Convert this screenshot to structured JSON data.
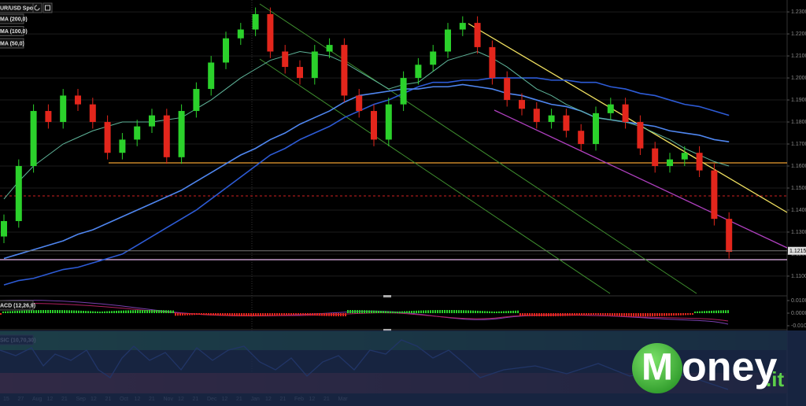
{
  "chart_data": {
    "type": "candlestick",
    "title": "UR/USD Spot",
    "ylim": [
      1.1014,
      1.2354
    ],
    "yticks": [
      {
        "value": 1.23,
        "label": "1.2300"
      },
      {
        "value": 1.22,
        "label": "1.2200"
      },
      {
        "value": 1.21,
        "label": "1.2100"
      },
      {
        "value": 1.2,
        "label": "1.2000"
      },
      {
        "value": 1.19,
        "label": "1.1900"
      },
      {
        "value": 1.18,
        "label": "1.1800"
      },
      {
        "value": 1.17,
        "label": "1.1700"
      },
      {
        "value": 1.16,
        "label": "1.1600"
      },
      {
        "value": 1.15,
        "label": "1.1500"
      },
      {
        "value": 1.14,
        "label": "1.1400"
      },
      {
        "value": 1.13,
        "label": "1.1300"
      },
      {
        "value": 1.12,
        "label": "1.1200"
      },
      {
        "value": 1.11,
        "label": "1.1100"
      }
    ],
    "grid": true,
    "up_color": "#2bd12b",
    "down_color": "#e3261c",
    "open": [
      1.128,
      1.135,
      1.16,
      1.185,
      1.18,
      1.192,
      1.188,
      1.18,
      1.166,
      1.172,
      1.178,
      1.183,
      1.164,
      1.185,
      1.195,
      1.207,
      1.218,
      1.222,
      1.229,
      1.212,
      1.205,
      1.2,
      1.212,
      1.215,
      1.192,
      1.185,
      1.172,
      1.188,
      1.2,
      1.206,
      1.212,
      1.222,
      1.225,
      1.214,
      1.2,
      1.19,
      1.186,
      1.18,
      1.183,
      1.176,
      1.17,
      1.184,
      1.188,
      1.18,
      1.168,
      1.16,
      1.163,
      1.166,
      1.158,
      1.136
    ],
    "high": [
      1.138,
      1.163,
      1.188,
      1.188,
      1.195,
      1.195,
      1.191,
      1.183,
      1.175,
      1.181,
      1.186,
      1.186,
      1.188,
      1.198,
      1.21,
      1.221,
      1.225,
      1.232,
      1.232,
      1.215,
      1.208,
      1.215,
      1.218,
      1.218,
      1.195,
      1.188,
      1.191,
      1.203,
      1.209,
      1.215,
      1.225,
      1.228,
      1.228,
      1.217,
      1.203,
      1.193,
      1.189,
      1.186,
      1.186,
      1.179,
      1.187,
      1.191,
      1.191,
      1.183,
      1.171,
      1.166,
      1.169,
      1.169,
      1.161,
      1.139
    ],
    "low": [
      1.125,
      1.132,
      1.157,
      1.177,
      1.177,
      1.185,
      1.177,
      1.163,
      1.163,
      1.169,
      1.175,
      1.161,
      1.161,
      1.182,
      1.192,
      1.204,
      1.215,
      1.219,
      1.209,
      1.202,
      1.197,
      1.197,
      1.209,
      1.189,
      1.182,
      1.169,
      1.169,
      1.185,
      1.197,
      1.203,
      1.209,
      1.219,
      1.211,
      1.197,
      1.187,
      1.183,
      1.177,
      1.177,
      1.173,
      1.167,
      1.167,
      1.181,
      1.177,
      1.165,
      1.157,
      1.157,
      1.16,
      1.155,
      1.133,
      1.118
    ],
    "close": [
      1.135,
      1.16,
      1.185,
      1.18,
      1.192,
      1.188,
      1.18,
      1.166,
      1.172,
      1.178,
      1.183,
      1.164,
      1.185,
      1.195,
      1.207,
      1.218,
      1.222,
      1.229,
      1.212,
      1.205,
      1.2,
      1.212,
      1.215,
      1.192,
      1.185,
      1.172,
      1.188,
      1.2,
      1.206,
      1.212,
      1.222,
      1.225,
      1.214,
      1.2,
      1.19,
      1.186,
      1.18,
      1.183,
      1.176,
      1.17,
      1.184,
      1.188,
      1.18,
      1.168,
      1.16,
      1.163,
      1.166,
      1.158,
      1.136,
      1.121
    ],
    "series": [
      {
        "name": "MA (200,0)",
        "color": "#2d5bd6",
        "values": [
          1.106,
          1.108,
          1.109,
          1.111,
          1.113,
          1.114,
          1.116,
          1.118,
          1.12,
          1.124,
          1.128,
          1.132,
          1.136,
          1.14,
          1.145,
          1.15,
          1.155,
          1.16,
          1.165,
          1.168,
          1.172,
          1.175,
          1.178,
          1.182,
          1.185,
          1.188,
          1.19,
          1.193,
          1.196,
          1.198,
          1.198,
          1.199,
          1.199,
          1.2,
          1.2,
          1.2,
          1.2,
          1.199,
          1.199,
          1.198,
          1.198,
          1.196,
          1.195,
          1.193,
          1.192,
          1.19,
          1.188,
          1.187,
          1.185,
          1.183
        ]
      },
      {
        "name": "MA (100,0)",
        "color": "#4f86f0",
        "values": [
          1.118,
          1.12,
          1.122,
          1.124,
          1.126,
          1.129,
          1.131,
          1.134,
          1.137,
          1.14,
          1.143,
          1.146,
          1.149,
          1.153,
          1.157,
          1.161,
          1.165,
          1.168,
          1.172,
          1.175,
          1.179,
          1.182,
          1.185,
          1.189,
          1.192,
          1.193,
          1.194,
          1.195,
          1.195,
          1.196,
          1.196,
          1.197,
          1.196,
          1.195,
          1.193,
          1.192,
          1.19,
          1.188,
          1.187,
          1.185,
          1.182,
          1.181,
          1.18,
          1.179,
          1.178,
          1.176,
          1.175,
          1.174,
          1.172,
          1.171
        ]
      },
      {
        "name": "MA (50,0)",
        "color": "#5fb59a",
        "values": [
          1.145,
          1.153,
          1.16,
          1.165,
          1.17,
          1.173,
          1.176,
          1.178,
          1.18,
          1.18,
          1.18,
          1.181,
          1.182,
          1.186,
          1.19,
          1.195,
          1.2,
          1.204,
          1.208,
          1.21,
          1.212,
          1.211,
          1.21,
          1.207,
          1.203,
          1.199,
          1.195,
          1.197,
          1.198,
          1.203,
          1.208,
          1.21,
          1.212,
          1.209,
          1.205,
          1.2,
          1.195,
          1.192,
          1.188,
          1.185,
          1.182,
          1.181,
          1.18,
          1.178,
          1.175,
          1.172,
          1.168,
          1.165,
          1.162,
          1.16
        ]
      }
    ],
    "last_price": 1.1215,
    "x_labels": [
      "15",
      "27",
      "Aug",
      "12",
      "21",
      "Sep",
      "12",
      "21",
      "Oct",
      "12",
      "21",
      "Nov",
      "12",
      "21",
      "Dec",
      "12",
      "21",
      "Jan",
      "12",
      "21",
      "Feb",
      "12",
      "21",
      "Mar"
    ],
    "macd": {
      "title": "ACD (12,26,9)",
      "ylim": [
        -0.0125,
        0.0125
      ],
      "yticks": [
        {
          "value": 0.01,
          "label": "0.0100"
        },
        {
          "value": 0,
          "label": "0.0000"
        },
        {
          "value": -0.01,
          "label": "-0.0100"
        }
      ]
    },
    "stochastic": {
      "title": "SIC (10,70,30)"
    },
    "logo": {
      "initial": "M",
      "name": "oney",
      "suffix": ".it"
    }
  }
}
